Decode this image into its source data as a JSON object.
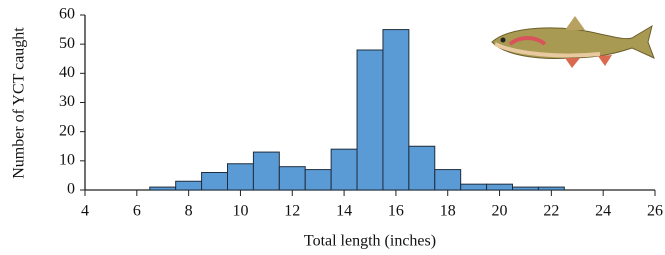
{
  "chart_data": {
    "type": "histogram",
    "xlabel": "Total length (inches)",
    "ylabel": "Number of YCT caught",
    "bins": [
      6.5,
      7.5,
      8.5,
      9.5,
      10.5,
      11.5,
      12.5,
      13.5,
      14.5,
      15.5,
      16.5,
      17.5,
      18.5,
      19.5,
      20.5,
      21.5,
      22.5
    ],
    "values": [
      1,
      3,
      6,
      9,
      13,
      8,
      7,
      14,
      48,
      55,
      15,
      7,
      2,
      2,
      1,
      1
    ],
    "color": "#5b9bd5",
    "xlim": [
      4,
      26
    ],
    "xticks": [
      4,
      6,
      8,
      10,
      12,
      14,
      16,
      18,
      20,
      22,
      24,
      26
    ],
    "ylim": [
      0,
      60
    ],
    "yticks": [
      0,
      10,
      20,
      30,
      40,
      50,
      60
    ]
  }
}
